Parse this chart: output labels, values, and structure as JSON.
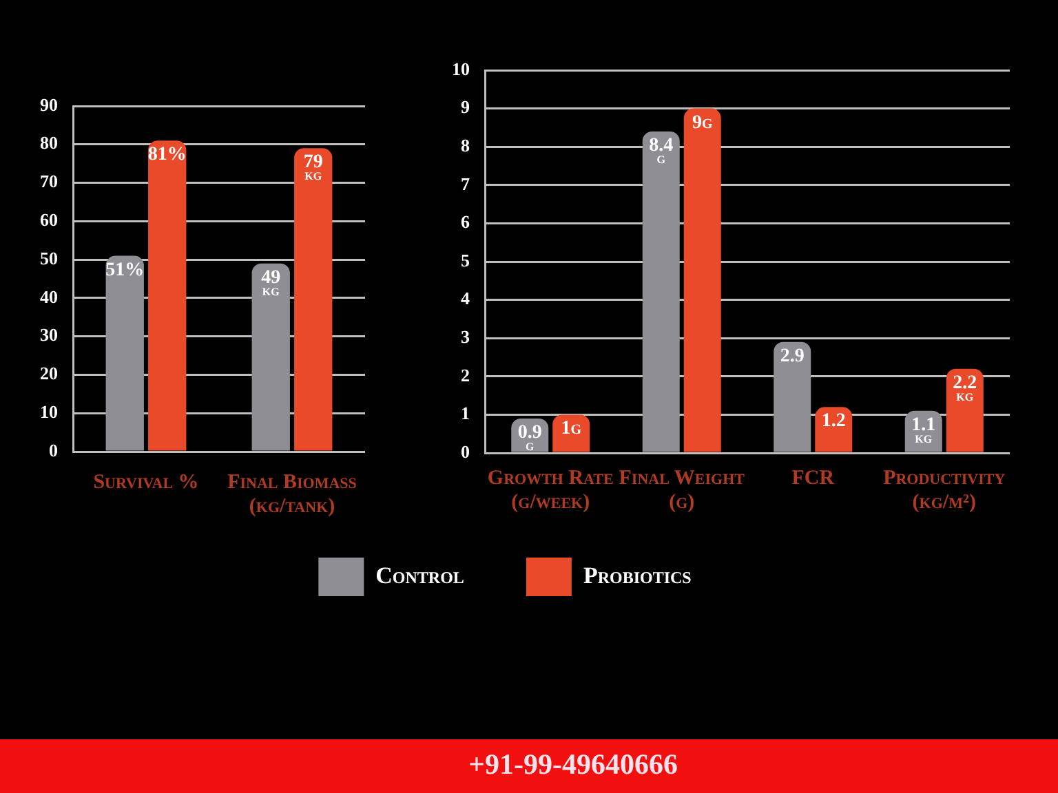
{
  "chart_data": [
    {
      "type": "bar",
      "categories": [
        "Survival %",
        "Final Biomass (kg/tank)"
      ],
      "series": [
        {
          "color": "#8e8e94",
          "values": [
            51,
            49
          ],
          "value_labels": [
            "51%",
            "49 kg"
          ]
        },
        {
          "color": "#e84a2a",
          "values": [
            81,
            79
          ],
          "value_labels": [
            "81%",
            "79 kg"
          ]
        }
      ],
      "ylim": [
        0,
        90
      ],
      "yticks": [
        0,
        10,
        20,
        30,
        40,
        50,
        60,
        70,
        80,
        90
      ],
      "grid": "y"
    },
    {
      "type": "bar",
      "categories": [
        "Growth Rate (g/week)",
        "Final Weight (g)",
        "FCR",
        "Productivity (kg/m²)"
      ],
      "series": [
        {
          "name": "Control",
          "color": "#8e8e94",
          "values": [
            0.9,
            8.4,
            2.9,
            1.1
          ],
          "value_labels": [
            "0.9 g",
            "8.4 g",
            "2.9",
            "1.1 kg"
          ]
        },
        {
          "name": "Probiotics",
          "color": "#e84a2a",
          "values": [
            1,
            9,
            1.2,
            2.2
          ],
          "value_labels": [
            "1g",
            "9g",
            "1.2",
            "2.2 kg"
          ]
        }
      ],
      "ylim": [
        0,
        10
      ],
      "yticks": [
        0,
        1,
        2,
        3,
        4,
        5,
        6,
        7,
        8,
        9,
        10
      ],
      "grid": "y",
      "legend": "bottom",
      "annotations": [
        "+91-99-49640666"
      ]
    }
  ]
}
